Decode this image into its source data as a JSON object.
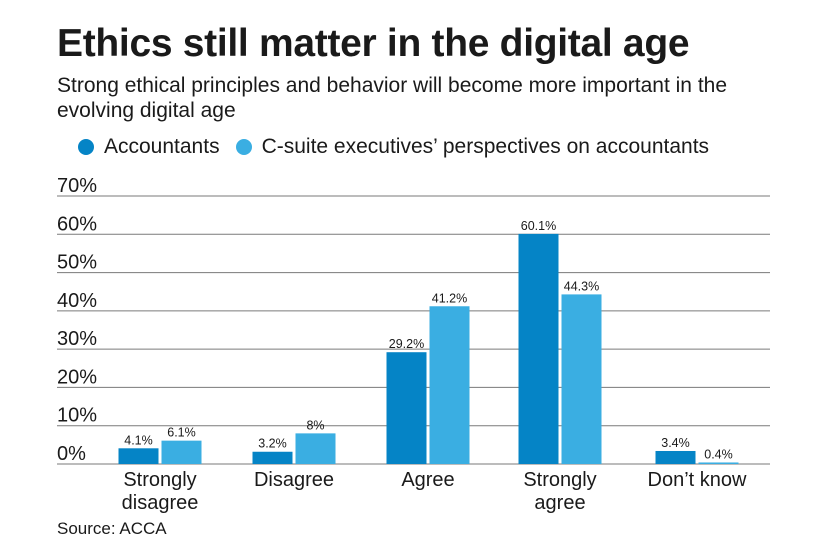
{
  "colors": {
    "accountants": "#0584c6",
    "csuite": "#3aaee2",
    "grid": "#7a7a7a"
  },
  "source": "Source: ACCA",
  "chart_data": {
    "type": "bar",
    "title": "Ethics still matter in the digital age",
    "subtitle": "Strong ethical principles and behavior will become more important in the evolving digital age",
    "categories": [
      [
        "Strongly",
        "disagree"
      ],
      [
        "Disagree"
      ],
      [
        "Agree"
      ],
      [
        "Strongly",
        "agree"
      ],
      [
        "Don’t know"
      ]
    ],
    "series": [
      {
        "name": "Accountants",
        "values": [
          4.1,
          3.2,
          29.2,
          60.1,
          3.4
        ],
        "labels": [
          "4.1%",
          "3.2%",
          "29.2%",
          "60.1%",
          "3.4%"
        ]
      },
      {
        "name": "C-suite executives’ perspectives on accountants",
        "values": [
          6.1,
          8,
          41.2,
          44.3,
          0.4
        ],
        "labels": [
          "6.1%",
          "8%",
          "41.2%",
          "44.3%",
          "0.4%"
        ]
      }
    ],
    "yticks": [
      "0%",
      "10%",
      "20%",
      "30%",
      "40%",
      "50%",
      "60%",
      "70%"
    ],
    "ylim": [
      0,
      70
    ],
    "xlabel": "",
    "ylabel": "",
    "grid": true,
    "legend_position": "top-left"
  }
}
